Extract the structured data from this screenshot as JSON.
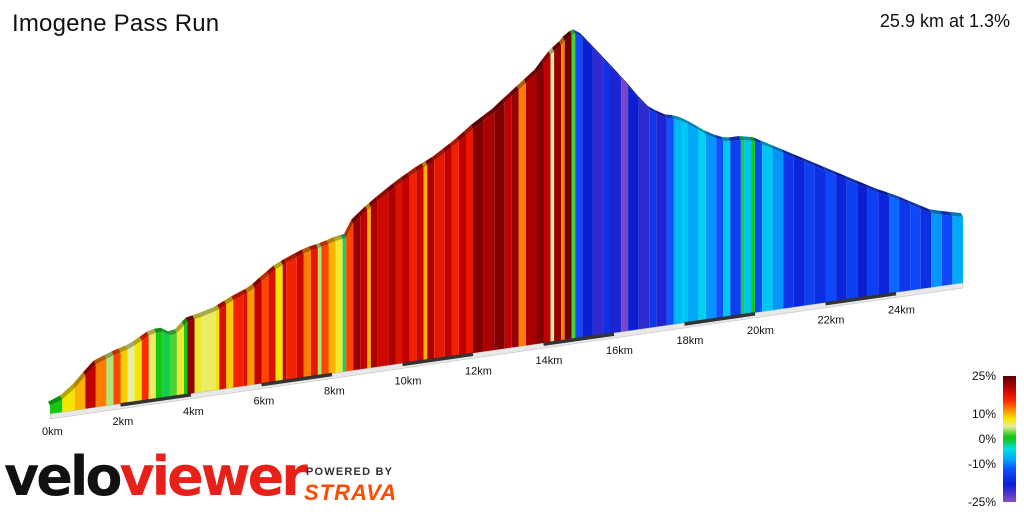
{
  "page": {
    "title": "Imogene Pass Run",
    "summary": "25.9 km at 1.3%"
  },
  "branding": {
    "logo_part1": "velo",
    "logo_part2": "viewer",
    "powered_by": "POWERED BY",
    "strava": "STRAVA"
  },
  "chart_data": {
    "type": "area",
    "title": "Imogene Pass Run",
    "xlabel": "",
    "ylabel": "",
    "xlim": [
      0,
      25.9
    ],
    "x_unit": "km",
    "x_tick_labels": [
      "0km",
      "2km",
      "4km",
      "6km",
      "8km",
      "10km",
      "12km",
      "14km",
      "16km",
      "18km",
      "20km",
      "22km",
      "24km"
    ],
    "x_ticks": [
      0,
      2,
      4,
      6,
      8,
      10,
      12,
      14,
      16,
      18,
      20,
      22,
      24
    ],
    "profile": [
      [
        0,
        0.5
      ],
      [
        0.5,
        0.9
      ],
      [
        1.0,
        2.0
      ],
      [
        1.3,
        2.6
      ],
      [
        1.8,
        3.0
      ],
      [
        2.3,
        3.3
      ],
      [
        2.9,
        4.0
      ],
      [
        3.2,
        4.0
      ],
      [
        3.5,
        3.6
      ],
      [
        3.9,
        4.4
      ],
      [
        4.6,
        4.7
      ],
      [
        5.3,
        5.4
      ],
      [
        5.7,
        5.7
      ],
      [
        6.0,
        6.2
      ],
      [
        6.4,
        6.8
      ],
      [
        6.8,
        7.2
      ],
      [
        7.3,
        7.6
      ],
      [
        7.8,
        7.8
      ],
      [
        8.1,
        8.0
      ],
      [
        8.4,
        8.1
      ],
      [
        8.6,
        8.9
      ],
      [
        9.0,
        9.6
      ],
      [
        9.4,
        10.2
      ],
      [
        9.9,
        10.9
      ],
      [
        10.4,
        11.5
      ],
      [
        10.9,
        12.0
      ],
      [
        11.5,
        12.8
      ],
      [
        12.0,
        13.6
      ],
      [
        12.6,
        14.4
      ],
      [
        13.2,
        15.4
      ],
      [
        13.8,
        16.4
      ],
      [
        14.2,
        17.4
      ],
      [
        14.5,
        17.9
      ],
      [
        14.7,
        18.4
      ],
      [
        14.9,
        18.5
      ],
      [
        15.1,
        18.2
      ],
      [
        15.5,
        17.2
      ],
      [
        16.0,
        15.9
      ],
      [
        16.5,
        14.6
      ],
      [
        16.9,
        13.4
      ],
      [
        17.4,
        12.6
      ],
      [
        17.8,
        12.4
      ],
      [
        18.2,
        11.9
      ],
      [
        18.7,
        11.1
      ],
      [
        19.2,
        10.6
      ],
      [
        19.6,
        10.6
      ],
      [
        20.0,
        10.4
      ],
      [
        20.5,
        9.8
      ],
      [
        21.0,
        9.2
      ],
      [
        21.5,
        8.6
      ],
      [
        22.0,
        8.0
      ],
      [
        22.5,
        7.4
      ],
      [
        23.0,
        6.8
      ],
      [
        23.5,
        6.2
      ],
      [
        24.0,
        5.7
      ],
      [
        24.5,
        5.1
      ],
      [
        25.0,
        4.5
      ],
      [
        25.5,
        4.2
      ],
      [
        25.9,
        4.0
      ]
    ],
    "gradient_segments": [
      [
        0,
        0.35,
        0
      ],
      [
        0.35,
        0.7,
        8
      ],
      [
        0.7,
        1.0,
        10
      ],
      [
        1.0,
        1.3,
        20
      ],
      [
        1.3,
        1.6,
        12
      ],
      [
        1.6,
        1.8,
        4
      ],
      [
        1.8,
        2.0,
        14
      ],
      [
        2.0,
        2.2,
        9
      ],
      [
        2.2,
        2.4,
        5
      ],
      [
        2.4,
        2.6,
        8
      ],
      [
        2.6,
        2.8,
        15
      ],
      [
        2.8,
        3.0,
        6
      ],
      [
        3.0,
        3.2,
        1
      ],
      [
        3.2,
        3.4,
        -1
      ],
      [
        3.4,
        3.6,
        2
      ],
      [
        3.6,
        3.8,
        7
      ],
      [
        3.8,
        3.9,
        0
      ],
      [
        3.9,
        4.1,
        22
      ],
      [
        4.1,
        4.3,
        7
      ],
      [
        4.3,
        4.7,
        6
      ],
      [
        4.7,
        4.8,
        8
      ],
      [
        4.8,
        5.0,
        18
      ],
      [
        5.0,
        5.2,
        9
      ],
      [
        5.2,
        5.5,
        16
      ],
      [
        5.5,
        5.6,
        18
      ],
      [
        5.6,
        5.8,
        11
      ],
      [
        5.8,
        6.0,
        20
      ],
      [
        6.0,
        6.2,
        14
      ],
      [
        6.2,
        6.4,
        18
      ],
      [
        6.4,
        6.6,
        8
      ],
      [
        6.6,
        6.7,
        20
      ],
      [
        6.7,
        7.0,
        16
      ],
      [
        7.0,
        7.2,
        19
      ],
      [
        7.2,
        7.4,
        12
      ],
      [
        7.4,
        7.6,
        17
      ],
      [
        7.6,
        7.7,
        4
      ],
      [
        7.7,
        7.9,
        14
      ],
      [
        7.9,
        8.1,
        10
      ],
      [
        8.1,
        8.3,
        7
      ],
      [
        8.3,
        8.4,
        -2
      ],
      [
        8.4,
        8.6,
        14
      ],
      [
        8.6,
        8.8,
        22
      ],
      [
        8.8,
        9.0,
        20
      ],
      [
        9.0,
        9.1,
        10
      ],
      [
        9.1,
        9.3,
        21
      ],
      [
        9.3,
        9.6,
        19
      ],
      [
        9.6,
        9.8,
        21
      ],
      [
        9.8,
        10.0,
        18
      ],
      [
        10.0,
        10.2,
        20
      ],
      [
        10.2,
        10.4,
        16
      ],
      [
        10.4,
        10.6,
        19
      ],
      [
        10.6,
        10.7,
        10
      ],
      [
        10.7,
        10.9,
        21
      ],
      [
        10.9,
        11.2,
        17
      ],
      [
        11.2,
        11.4,
        20
      ],
      [
        11.4,
        11.6,
        16
      ],
      [
        11.6,
        11.8,
        20
      ],
      [
        11.8,
        12.0,
        17
      ],
      [
        12.0,
        12.3,
        23
      ],
      [
        12.3,
        12.6,
        21
      ],
      [
        12.6,
        12.9,
        23
      ],
      [
        12.9,
        13.1,
        20
      ],
      [
        13.1,
        13.3,
        22
      ],
      [
        13.3,
        13.5,
        12
      ],
      [
        13.5,
        13.8,
        21
      ],
      [
        13.8,
        14.0,
        23
      ],
      [
        14.0,
        14.2,
        20
      ],
      [
        14.2,
        14.3,
        5
      ],
      [
        14.3,
        14.5,
        22
      ],
      [
        14.5,
        14.6,
        12
      ],
      [
        14.6,
        14.8,
        24
      ],
      [
        14.8,
        14.9,
        2
      ],
      [
        14.9,
        15.1,
        -13
      ],
      [
        15.1,
        15.4,
        -18
      ],
      [
        15.4,
        15.7,
        -20
      ],
      [
        15.7,
        15.9,
        -16
      ],
      [
        15.9,
        16.2,
        -19
      ],
      [
        16.2,
        16.4,
        -24
      ],
      [
        16.4,
        16.7,
        -18
      ],
      [
        16.7,
        17.0,
        -20
      ],
      [
        17.0,
        17.2,
        -15
      ],
      [
        17.2,
        17.5,
        -19
      ],
      [
        17.5,
        17.7,
        -12
      ],
      [
        17.7,
        17.9,
        -7
      ],
      [
        17.9,
        18.1,
        -6
      ],
      [
        18.1,
        18.4,
        -8
      ],
      [
        18.4,
        18.6,
        -5
      ],
      [
        18.6,
        18.9,
        -9
      ],
      [
        18.9,
        19.1,
        -12
      ],
      [
        19.1,
        19.3,
        -6
      ],
      [
        19.3,
        19.6,
        -14
      ],
      [
        19.6,
        19.7,
        -1
      ],
      [
        19.7,
        19.9,
        -6
      ],
      [
        19.9,
        20.0,
        0
      ],
      [
        20.0,
        20.2,
        -13
      ],
      [
        20.2,
        20.5,
        -6
      ],
      [
        20.5,
        20.8,
        -9
      ],
      [
        20.8,
        21.1,
        -15
      ],
      [
        21.1,
        21.4,
        -17
      ],
      [
        21.4,
        21.7,
        -14
      ],
      [
        21.7,
        22.0,
        -16
      ],
      [
        22.0,
        22.3,
        -13
      ],
      [
        22.3,
        22.6,
        -17
      ],
      [
        22.6,
        22.9,
        -14
      ],
      [
        22.9,
        23.2,
        -18
      ],
      [
        23.2,
        23.5,
        -14
      ],
      [
        23.5,
        23.8,
        -17
      ],
      [
        23.8,
        24.1,
        -11
      ],
      [
        24.1,
        24.4,
        -15
      ],
      [
        24.4,
        24.7,
        -13
      ],
      [
        24.7,
        25.0,
        -16
      ],
      [
        25.0,
        25.3,
        -9
      ],
      [
        25.3,
        25.6,
        -13
      ],
      [
        25.6,
        25.9,
        -8
      ]
    ],
    "legend": {
      "tick_labels": [
        "25%",
        "10%",
        "0%",
        "-10%",
        "-25%"
      ],
      "ticks": [
        25,
        10,
        0,
        -10,
        -25
      ],
      "range": [
        -25,
        25
      ],
      "colors": [
        [
          25,
          "#5a0000"
        ],
        [
          20,
          "#c00000"
        ],
        [
          15,
          "#ff2a00"
        ],
        [
          11,
          "#ff9900"
        ],
        [
          8,
          "#f5e600"
        ],
        [
          5,
          "#e6ee99"
        ],
        [
          1,
          "#14c814"
        ],
        [
          0,
          "#14c814"
        ],
        [
          -4,
          "#00e0e8"
        ],
        [
          -8,
          "#00aaf8"
        ],
        [
          -12,
          "#1050ff"
        ],
        [
          -18,
          "#0a1ed2"
        ],
        [
          -25,
          "#8a4cc8"
        ]
      ]
    }
  }
}
